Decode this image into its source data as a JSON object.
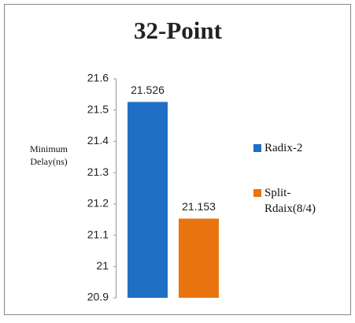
{
  "chart_data": {
    "type": "bar",
    "title": "32-Point",
    "y_label": "Minimum Delay(ns)",
    "categories": [
      null
    ],
    "series": [
      {
        "name": "Radix-2",
        "color": "#1f6fc5",
        "values": [
          21.526
        ]
      },
      {
        "name": "Split-Rdaix(8/4)",
        "color": "#e8750f",
        "values": [
          21.153
        ]
      }
    ],
    "ylim": [
      20.9,
      21.6
    ],
    "yticks": [
      20.9,
      21,
      21.1,
      21.2,
      21.3,
      21.4,
      21.5,
      21.6
    ],
    "grid": false,
    "legend": "right"
  }
}
